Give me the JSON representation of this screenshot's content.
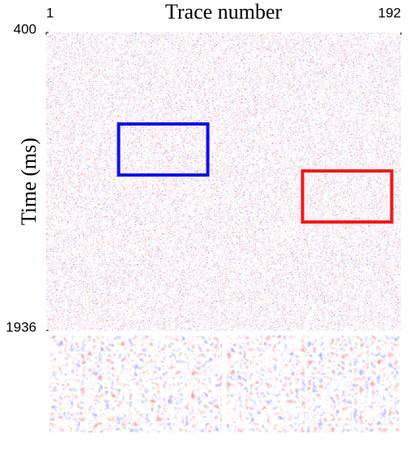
{
  "chart_data": {
    "type": "heatmap",
    "x_label": "Trace number",
    "y_label": "Time (ms)",
    "xlim": [
      1,
      192
    ],
    "xticks": [
      1,
      192
    ],
    "ylim": [
      400,
      1936
    ],
    "yticks": [
      400,
      1936
    ],
    "y_inverted": true,
    "regions": [
      {
        "color": "#1010e8",
        "x": [
          40,
          88
        ],
        "y": [
          872,
          1135
        ]
      },
      {
        "color": "#f01818",
        "x": [
          139,
          187
        ],
        "y": [
          1114,
          1377
        ]
      }
    ]
  }
}
